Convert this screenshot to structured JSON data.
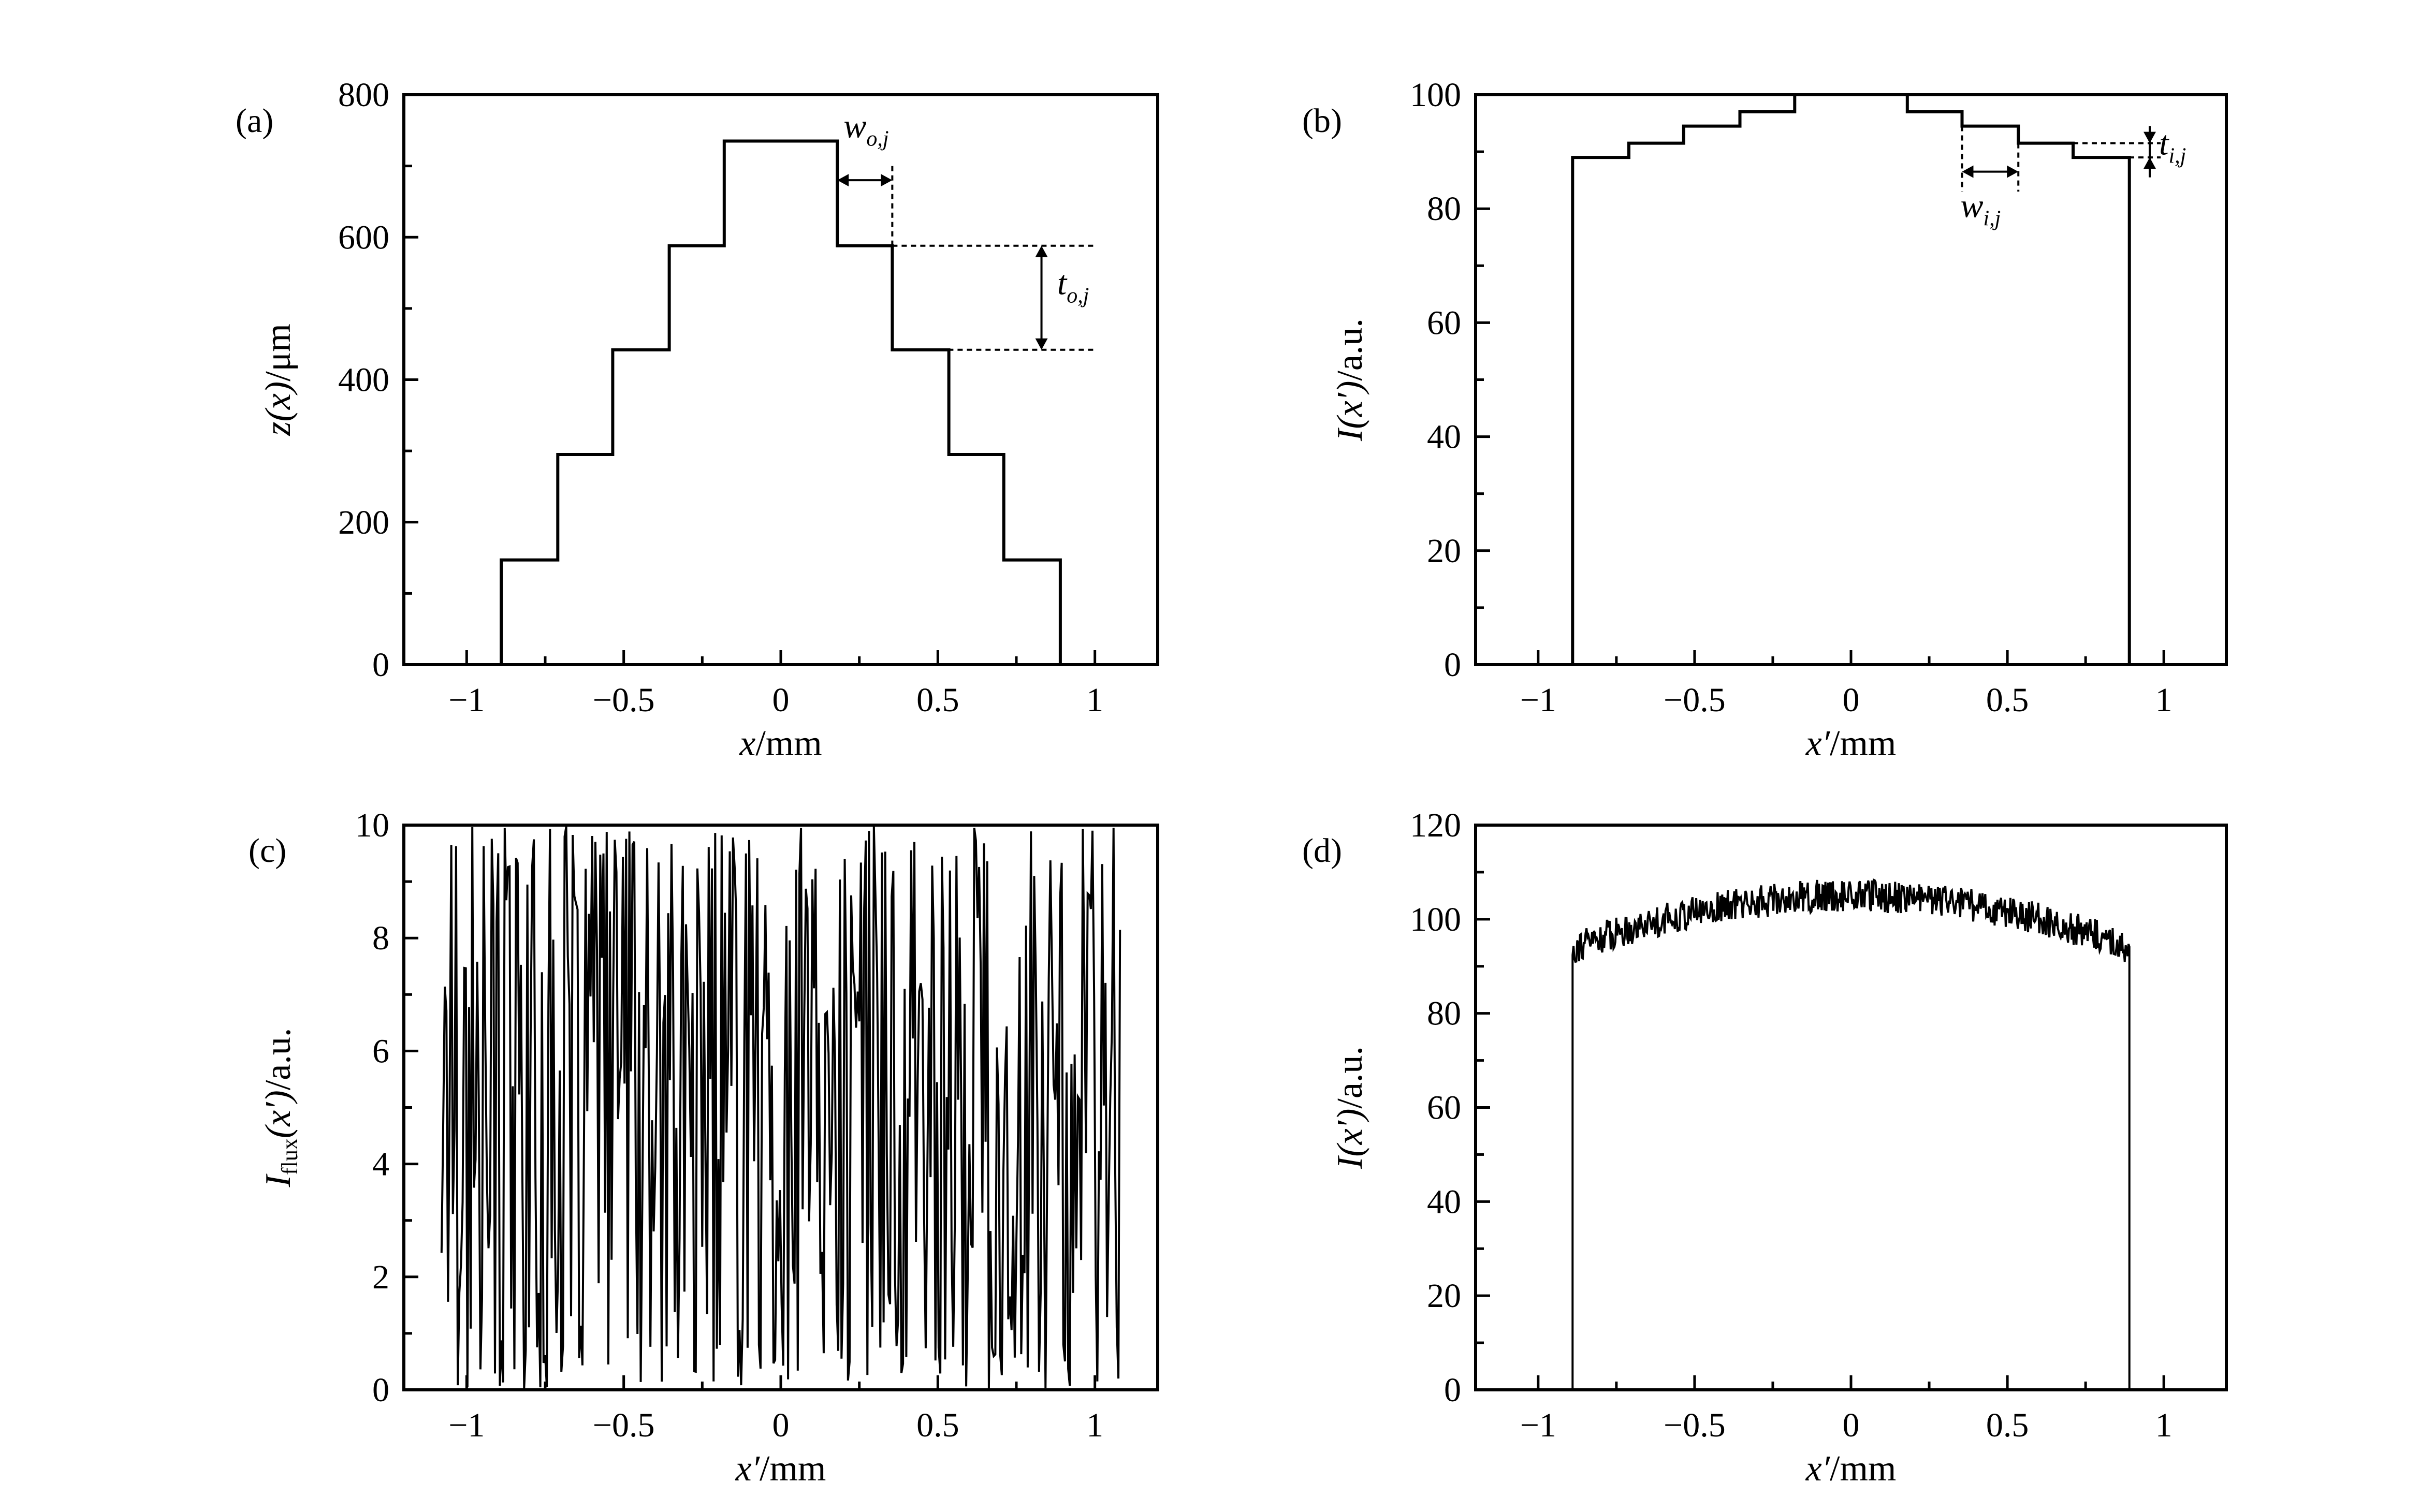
{
  "chart_data": [
    {
      "panel": "(a)",
      "type": "line",
      "style": "step",
      "xlabel_var": "x",
      "xlabel_unit": "/mm",
      "ylabel_var": "z(x)",
      "ylabel_unit": "/μm",
      "xlim": [
        -1.2,
        1.2
      ],
      "ylim": [
        0,
        800
      ],
      "xticks": [
        -1,
        -0.5,
        0,
        0.5,
        1
      ],
      "xtick_labels": [
        "−1",
        "−0.5",
        "0",
        "0.5",
        "1"
      ],
      "yticks": [
        0,
        200,
        400,
        600,
        800
      ],
      "ytick_labels": [
        "0",
        "200",
        "400",
        "600",
        "800"
      ],
      "series": [
        {
          "x": [
            -0.89,
            -0.89,
            -0.71,
            -0.71,
            -0.535,
            -0.535,
            -0.355,
            -0.355,
            -0.18,
            -0.18,
            0.18,
            0.18,
            0.355,
            0.355,
            0.535,
            0.535,
            0.71,
            0.71,
            0.89,
            0.89
          ],
          "y": [
            0,
            147,
            147,
            295,
            295,
            442,
            442,
            588,
            588,
            735,
            735,
            588,
            588,
            442,
            442,
            295,
            295,
            147,
            147,
            0
          ]
        }
      ],
      "annotations": [
        {
          "var": "w",
          "sub": "o,j"
        },
        {
          "var": "t",
          "sub": "o,j"
        }
      ],
      "grid": false
    },
    {
      "panel": "(b)",
      "type": "line",
      "style": "step",
      "xlabel_var": "x′",
      "xlabel_unit": "/mm",
      "ylabel_var": "I(x′)",
      "ylabel_unit": "/a.u.",
      "xlim": [
        -1.2,
        1.2
      ],
      "ylim": [
        0,
        100
      ],
      "xticks": [
        -1,
        -0.5,
        0,
        0.5,
        1
      ],
      "xtick_labels": [
        "−1",
        "−0.5",
        "0",
        "0.5",
        "1"
      ],
      "yticks": [
        0,
        20,
        40,
        60,
        80,
        100
      ],
      "ytick_labels": [
        "0",
        "20",
        "40",
        "60",
        "80",
        "100"
      ],
      "series": [
        {
          "x": [
            -0.89,
            -0.89,
            -0.71,
            -0.71,
            -0.535,
            -0.535,
            -0.355,
            -0.355,
            -0.18,
            -0.18,
            0.18,
            0.18,
            0.355,
            0.355,
            0.535,
            0.535,
            0.71,
            0.71,
            0.89,
            0.89
          ],
          "y": [
            0,
            89,
            89,
            91.5,
            91.5,
            94.5,
            94.5,
            97,
            97,
            100,
            100,
            97,
            97,
            94.5,
            94.5,
            91.5,
            91.5,
            89,
            89,
            0
          ]
        }
      ],
      "annotations": [
        {
          "var": "w",
          "sub": "i,j"
        },
        {
          "var": "t",
          "sub": "i,j"
        }
      ],
      "grid": false
    },
    {
      "panel": "(c)",
      "type": "line",
      "xlabel_var": "x′",
      "xlabel_unit": "/mm",
      "ylabel_var": "I",
      "ylabel_sub": "flux",
      "ylabel_rest": "(x′)",
      "ylabel_unit": "/a.u.",
      "xlim": [
        -1.2,
        1.2
      ],
      "ylim": [
        0,
        10
      ],
      "xticks": [
        -1,
        -0.5,
        0,
        0.5,
        1
      ],
      "xtick_labels": [
        "−1",
        "−0.5",
        "0",
        "0.5",
        "1"
      ],
      "yticks": [
        0,
        2,
        4,
        6,
        8,
        10
      ],
      "ytick_labels": [
        "0",
        "2",
        "4",
        "6",
        "8",
        "10"
      ],
      "noise": {
        "x_start": -1.08,
        "x_end": 1.08,
        "samples": 420,
        "min": 0,
        "max": 10,
        "mean": 5
      },
      "grid": false
    },
    {
      "panel": "(d)",
      "type": "line",
      "xlabel_var": "x′",
      "xlabel_unit": "/mm",
      "ylabel_var": "I(x′)",
      "ylabel_unit": "/a.u.",
      "xlim": [
        -1.2,
        1.2
      ],
      "ylim": [
        0,
        120
      ],
      "xticks": [
        -1,
        -0.5,
        0,
        0.5,
        1
      ],
      "xtick_labels": [
        "−1",
        "−0.5",
        "0",
        "0.5",
        "1"
      ],
      "yticks": [
        0,
        20,
        40,
        60,
        80,
        100,
        120
      ],
      "ytick_labels": [
        "0",
        "20",
        "40",
        "60",
        "80",
        "100",
        "120"
      ],
      "noise": {
        "x_start": -0.89,
        "x_end": 0.89,
        "samples": 600,
        "edge_mean": 94,
        "center_mean": 105,
        "amplitude": 3.5
      },
      "grid": false
    }
  ]
}
